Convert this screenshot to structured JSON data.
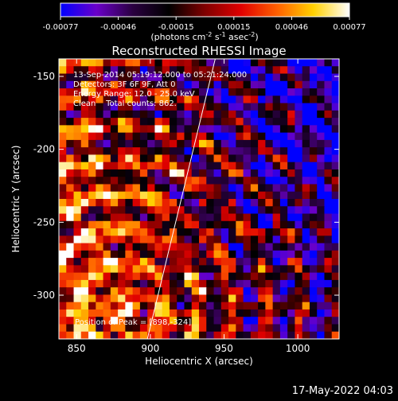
{
  "chart_data": {
    "type": "heatmap",
    "title": "Reconstructed RHESSI Image",
    "xlabel": "Heliocentric X (arcsec)",
    "ylabel": "Heliocentric Y (arcsec)",
    "xlim": [
      838,
      1028
    ],
    "ylim": [
      -330,
      -138
    ],
    "x_ticks": [
      850,
      900,
      950,
      1000
    ],
    "y_ticks": [
      -150,
      -200,
      -250,
      -300
    ],
    "colorbar": {
      "range": [
        -0.00077,
        0.00077
      ],
      "tick_labels": [
        "-0.00077",
        "-0.00046",
        "-0.00015",
        "0.00015",
        "0.00046",
        "0.00077"
      ],
      "unit_prefix": "(photons cm",
      "unit_exp1": "-2",
      "unit_mid": " s",
      "unit_exp2": "-1",
      "unit_mid2": " asec",
      "unit_exp3": "-2",
      "unit_suffix": ")",
      "colors": [
        "#0000ff",
        "#6a00c8",
        "#2a0040",
        "#000000",
        "#800000",
        "#e00000",
        "#ff6000",
        "#ffd000",
        "#ffffff"
      ]
    },
    "annotations": [
      "13-Sep-2014 05:19:12.000 to 05:21:24.000",
      "Detectors: 3F 6F 9F, Att 0",
      "Energy Range: 12.0 - 25.0 keV",
      "Clean    Total counts: 862."
    ],
    "peak_label": "Position of Peak = [898,-324]",
    "limb_line": [
      [
        898,
        -330
      ],
      [
        944,
        -138
      ]
    ]
  },
  "footer": {
    "date": "17-May-2022 04:03"
  }
}
